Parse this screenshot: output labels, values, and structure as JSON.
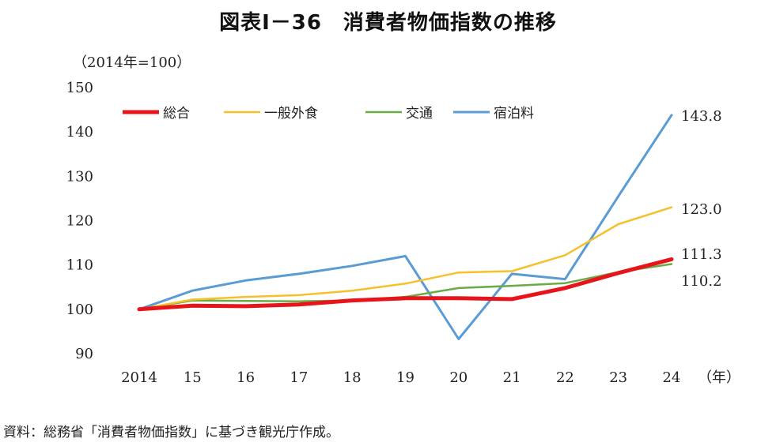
{
  "title": "図表Ⅰ－36　消費者物価指数の推移",
  "source": "資料：総務省「消費者物価指数」に基づき観光庁作成。",
  "chart_data": {
    "type": "line",
    "ylabel": "（2014年=100）",
    "xunit": "（年）",
    "categories": [
      "2014",
      "15",
      "16",
      "17",
      "18",
      "19",
      "20",
      "21",
      "22",
      "23",
      "24"
    ],
    "ylim": [
      90,
      150
    ],
    "yticks": [
      90,
      100,
      110,
      120,
      130,
      140,
      150
    ],
    "grid": false,
    "legend_position": "top-left",
    "series": [
      {
        "name": "総合",
        "color": "#e8141b",
        "width": 5,
        "values": [
          100.0,
          100.8,
          100.7,
          101.1,
          102.0,
          102.5,
          102.5,
          102.3,
          104.8,
          108.2,
          111.3
        ]
      },
      {
        "name": "一般外食",
        "color": "#f5c02a",
        "width": 2.5,
        "values": [
          100.0,
          102.2,
          102.8,
          103.2,
          104.2,
          105.8,
          108.3,
          108.6,
          112.2,
          119.2,
          123.0
        ]
      },
      {
        "name": "交通",
        "color": "#6aaa47",
        "width": 2.5,
        "values": [
          100.0,
          102.0,
          101.9,
          101.8,
          102.0,
          102.8,
          104.8,
          105.3,
          105.9,
          108.4,
          110.2
        ]
      },
      {
        "name": "宿泊料",
        "color": "#5b9bd5",
        "width": 3,
        "values": [
          100.0,
          104.2,
          106.5,
          108.0,
          109.8,
          112.0,
          93.3,
          108.0,
          106.8,
          125.5,
          143.8
        ]
      }
    ],
    "end_labels": [
      {
        "text": "143.8"
      },
      {
        "text": "123.0"
      },
      {
        "text": "111.3"
      },
      {
        "text": "110.2"
      }
    ]
  }
}
